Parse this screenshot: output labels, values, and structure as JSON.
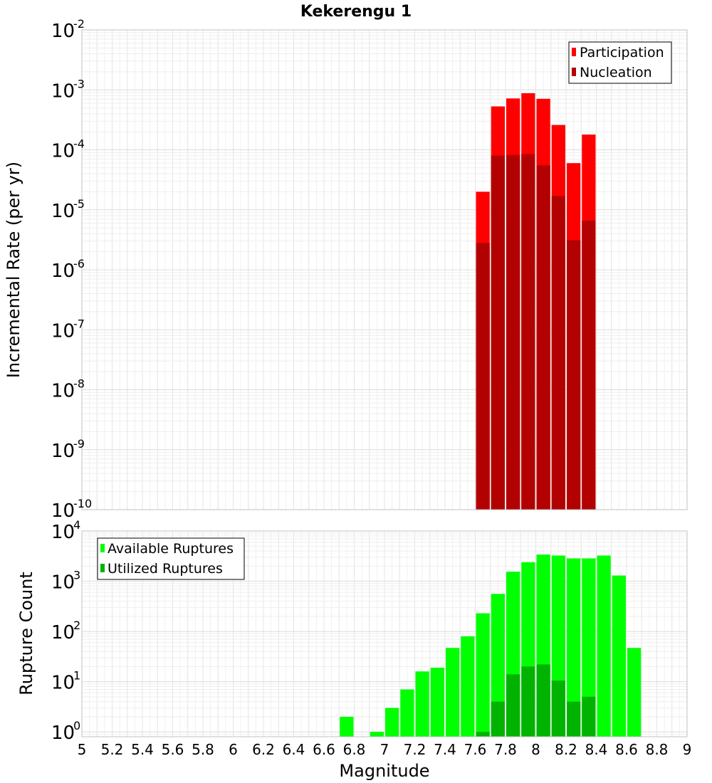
{
  "chart_data": [
    {
      "type": "bar",
      "title": "Kekerengu 1",
      "xlabel": "",
      "ylabel": "Incremental Rate (per yr)",
      "yscale": "log",
      "ylim": [
        1e-10,
        0.01
      ],
      "xlim": [
        5,
        9
      ],
      "grid": true,
      "legend_position": "top-right",
      "y_tick_labels": [
        {
          "base": "10",
          "exp": "-10"
        },
        {
          "base": "10",
          "exp": "-9"
        },
        {
          "base": "10",
          "exp": "-8"
        },
        {
          "base": "10",
          "exp": "-7"
        },
        {
          "base": "10",
          "exp": "-6"
        },
        {
          "base": "10",
          "exp": "-5"
        },
        {
          "base": "10",
          "exp": "-4"
        },
        {
          "base": "10",
          "exp": "-3"
        },
        {
          "base": "10",
          "exp": "-2"
        }
      ],
      "x": [
        7.65,
        7.75,
        7.85,
        7.95,
        8.05,
        8.15,
        8.25,
        8.35
      ],
      "series": [
        {
          "name": "Participation",
          "color": "#ff0000",
          "values": [
            2e-05,
            0.00053,
            0.00072,
            0.00088,
            0.00071,
            0.00026,
            6e-05,
            0.00018
          ]
        },
        {
          "name": "Nucleation",
          "color": "#b30000",
          "values": [
            2.8e-06,
            8e-05,
            8.2e-05,
            8.5e-05,
            5.5e-05,
            1.7e-05,
            3.1e-06,
            6.6e-06
          ]
        }
      ]
    },
    {
      "type": "bar",
      "title": "",
      "xlabel": "Magnitude",
      "ylabel": "Rupture Count",
      "yscale": "log",
      "ylim": [
        0.8,
        10000
      ],
      "xlim": [
        5,
        9
      ],
      "grid": true,
      "legend_position": "top-left",
      "x_tick_labels": [
        "5",
        "5.2",
        "5.4",
        "5.6",
        "5.8",
        "6",
        "6.2",
        "6.4",
        "6.6",
        "6.8",
        "7",
        "7.2",
        "7.4",
        "7.6",
        "7.8",
        "8",
        "8.2",
        "8.4",
        "8.6",
        "8.8",
        "9"
      ],
      "y_tick_labels": [
        {
          "base": "10",
          "exp": "0"
        },
        {
          "base": "10",
          "exp": "1"
        },
        {
          "base": "10",
          "exp": "2"
        },
        {
          "base": "10",
          "exp": "3"
        },
        {
          "base": "10",
          "exp": "4"
        }
      ],
      "x": [
        6.75,
        6.95,
        7.05,
        7.15,
        7.25,
        7.35,
        7.45,
        7.55,
        7.65,
        7.75,
        7.85,
        7.95,
        8.05,
        8.15,
        8.25,
        8.35,
        8.45,
        8.55,
        8.65
      ],
      "series": [
        {
          "name": "Available Ruptures",
          "color": "#00ff00",
          "values": [
            2,
            1,
            3,
            7,
            16,
            19,
            47,
            80,
            230,
            560,
            1550,
            2400,
            3400,
            3250,
            2850,
            2850,
            3250,
            1300,
            47
          ]
        },
        {
          "name": "Utilized Ruptures",
          "color": "#00b300",
          "values": [
            null,
            null,
            null,
            null,
            null,
            null,
            null,
            null,
            1,
            4,
            14,
            20,
            22,
            10.5,
            4,
            5,
            null,
            null,
            null
          ]
        }
      ]
    }
  ]
}
